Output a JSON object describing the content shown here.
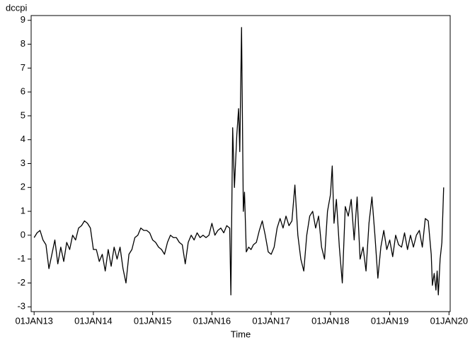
{
  "chart_data": {
    "type": "line",
    "y_label": "dccpi",
    "x_label": "Time",
    "color": "#000000",
    "frame": true,
    "xlim": [
      2012.95,
      2020.02
    ],
    "ylim": [
      -3.2,
      9.2
    ],
    "yticks": [
      -3,
      -2,
      -1,
      0,
      1,
      2,
      3,
      4,
      5,
      6,
      7,
      8,
      9
    ],
    "xticks": [
      {
        "value": 2013,
        "label": "01JAN13"
      },
      {
        "value": 2014,
        "label": "01JAN14"
      },
      {
        "value": 2015,
        "label": "01JAN15"
      },
      {
        "value": 2016,
        "label": "01JAN16"
      },
      {
        "value": 2017,
        "label": "01JAN17"
      },
      {
        "value": 2018,
        "label": "01JAN18"
      },
      {
        "value": 2019,
        "label": "01JAN19"
      },
      {
        "value": 2020,
        "label": "01JAN20"
      }
    ],
    "x": [
      2013.0,
      2013.05,
      2013.1,
      2013.15,
      2013.2,
      2013.25,
      2013.3,
      2013.35,
      2013.4,
      2013.45,
      2013.5,
      2013.55,
      2013.6,
      2013.65,
      2013.7,
      2013.75,
      2013.8,
      2013.85,
      2013.9,
      2013.95,
      2014.0,
      2014.05,
      2014.1,
      2014.15,
      2014.2,
      2014.25,
      2014.3,
      2014.35,
      2014.4,
      2014.45,
      2014.5,
      2014.55,
      2014.6,
      2014.65,
      2014.7,
      2014.75,
      2014.8,
      2014.85,
      2014.9,
      2014.95,
      2015.0,
      2015.05,
      2015.1,
      2015.15,
      2015.2,
      2015.25,
      2015.3,
      2015.35,
      2015.4,
      2015.45,
      2015.5,
      2015.55,
      2015.6,
      2015.65,
      2015.7,
      2015.75,
      2015.8,
      2015.85,
      2015.9,
      2015.95,
      2016.0,
      2016.05,
      2016.1,
      2016.15,
      2016.2,
      2016.25,
      2016.3,
      2016.32,
      2016.35,
      2016.38,
      2016.42,
      2016.45,
      2016.47,
      2016.5,
      2016.53,
      2016.55,
      2016.58,
      2016.62,
      2016.66,
      2016.7,
      2016.75,
      2016.8,
      2016.85,
      2016.9,
      2016.95,
      2017.0,
      2017.05,
      2017.1,
      2017.15,
      2017.2,
      2017.25,
      2017.3,
      2017.35,
      2017.4,
      2017.45,
      2017.5,
      2017.55,
      2017.6,
      2017.65,
      2017.7,
      2017.75,
      2017.8,
      2017.85,
      2017.9,
      2017.95,
      2018.0,
      2018.03,
      2018.06,
      2018.1,
      2018.15,
      2018.2,
      2018.25,
      2018.3,
      2018.35,
      2018.4,
      2018.45,
      2018.5,
      2018.55,
      2018.6,
      2018.65,
      2018.7,
      2018.75,
      2018.8,
      2018.85,
      2018.9,
      2018.95,
      2019.0,
      2019.05,
      2019.1,
      2019.15,
      2019.2,
      2019.25,
      2019.3,
      2019.35,
      2019.4,
      2019.45,
      2019.5,
      2019.55,
      2019.6,
      2019.65,
      2019.7,
      2019.72,
      2019.75,
      2019.78,
      2019.8,
      2019.82,
      2019.85,
      2019.88,
      2019.91
    ],
    "values": [
      -0.1,
      0.1,
      0.2,
      -0.2,
      -0.4,
      -1.4,
      -0.8,
      -0.2,
      -1.2,
      -0.5,
      -1.1,
      -0.3,
      -0.6,
      0.0,
      -0.2,
      0.3,
      0.4,
      0.6,
      0.5,
      0.3,
      -0.6,
      -0.6,
      -1.1,
      -0.8,
      -1.5,
      -0.6,
      -1.3,
      -0.5,
      -1.0,
      -0.5,
      -1.4,
      -2.0,
      -0.8,
      -0.6,
      -0.1,
      0.0,
      0.3,
      0.2,
      0.2,
      0.1,
      -0.2,
      -0.3,
      -0.5,
      -0.6,
      -0.8,
      -0.3,
      0.0,
      -0.1,
      -0.1,
      -0.3,
      -0.4,
      -1.2,
      -0.3,
      0.0,
      -0.2,
      0.1,
      -0.1,
      0.0,
      -0.1,
      0.0,
      0.5,
      0.0,
      0.2,
      0.3,
      0.1,
      0.4,
      0.3,
      -2.5,
      4.5,
      2.0,
      4.2,
      5.3,
      3.5,
      8.7,
      1.0,
      1.8,
      -0.7,
      -0.5,
      -0.6,
      -0.4,
      -0.3,
      0.2,
      0.6,
      0.0,
      -0.7,
      -0.8,
      -0.5,
      0.3,
      0.7,
      0.3,
      0.8,
      0.4,
      0.6,
      2.1,
      0.0,
      -1.0,
      -1.5,
      0.0,
      0.8,
      1.0,
      0.3,
      0.8,
      -0.5,
      -1.0,
      1.0,
      1.7,
      2.9,
      0.5,
      1.5,
      -0.5,
      -2.0,
      1.2,
      0.8,
      1.5,
      -0.2,
      1.6,
      -1.0,
      -0.5,
      -1.5,
      0.5,
      1.6,
      0.0,
      -1.8,
      -0.5,
      0.2,
      -0.6,
      -0.2,
      -0.9,
      0.0,
      -0.4,
      -0.5,
      0.1,
      -0.6,
      0.0,
      -0.5,
      0.0,
      0.2,
      -0.5,
      0.7,
      0.6,
      -0.8,
      -2.1,
      -1.6,
      -2.3,
      -1.5,
      -2.5,
      -1.0,
      -0.3,
      2.0
    ]
  }
}
